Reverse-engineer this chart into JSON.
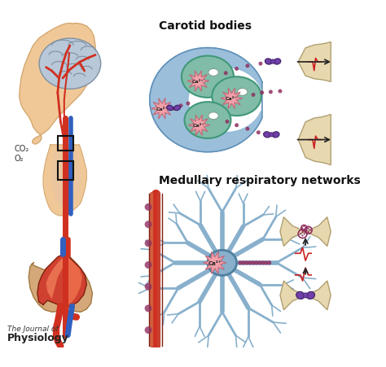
{
  "carotid_label": "Carotid bodies",
  "medullary_label": "Medullary respiratory networks",
  "journal_line1": "The Journal of",
  "journal_line2": "Physiology",
  "background_color": "#ffffff",
  "colors": {
    "skin": "#f0c898",
    "skin_edge": "#d4a870",
    "brain_gray": "#b8c8d8",
    "brain_edge": "#8090a0",
    "vessel_red": "#d03020",
    "vessel_blue": "#3060c0",
    "vessel_dark": "#602010",
    "blue_crescent": "#90b8d8",
    "blue_crescent_edge": "#6090b8",
    "green_cell": "#80bca8",
    "green_cell_edge": "#409878",
    "pink_star": "#f0a0a8",
    "pink_star_edge": "#c06878",
    "purple": "#7040a8",
    "purple_dark": "#402068",
    "nerve_beige": "#e8d8b0",
    "nerve_edge": "#b0a070",
    "neuron_blue": "#88b0cc",
    "neuron_edge": "#5080a0",
    "dotted": "#903060",
    "red_signal": "#cc2020",
    "heart_red": "#d04030",
    "heart_light": "#e87050",
    "heart_edge": "#802010",
    "arrow_col": "#222222"
  },
  "figsize": [
    4.74,
    4.52
  ],
  "dpi": 100
}
